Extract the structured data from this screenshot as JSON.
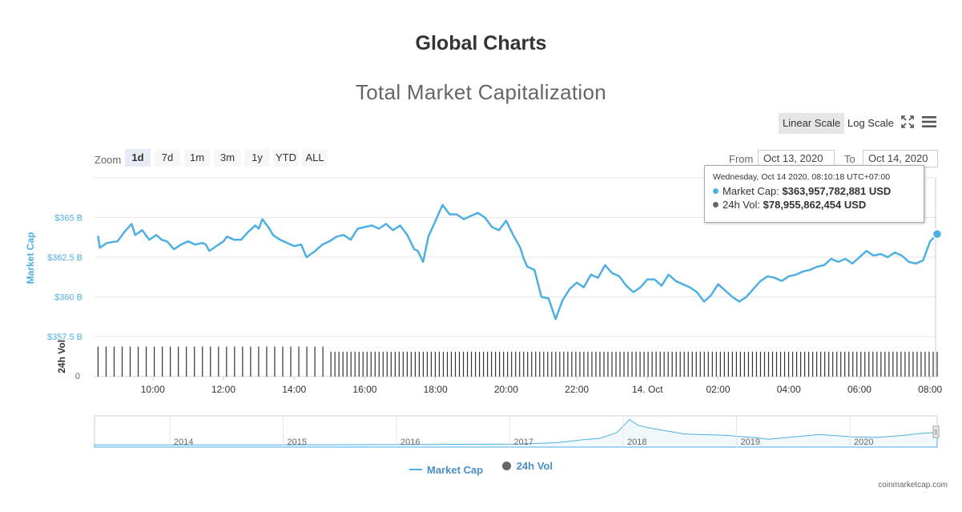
{
  "header": {
    "page_title": "Global Charts",
    "chart_title": "Total Market Capitalization"
  },
  "toolbar": {
    "linear_label": "Linear Scale",
    "log_label": "Log Scale",
    "fullscreen_icon": "fullscreen-icon",
    "menu_icon": "hamburger-menu-icon"
  },
  "zoom": {
    "label": "Zoom",
    "buttons": [
      "1d",
      "7d",
      "1m",
      "3m",
      "1y",
      "YTD",
      "ALL"
    ],
    "active": "1d"
  },
  "range": {
    "from_label": "From",
    "from_value": "Oct 13, 2020",
    "to_label": "To",
    "to_value": "Oct 14, 2020"
  },
  "tooltip": {
    "timestamp": "Wednesday, Oct 14 2020, 08:10:18 UTC+07:00",
    "market_cap_label": "Market Cap:",
    "market_cap_value": "$363,957,782,881 USD",
    "vol_label": "24h Vol:",
    "vol_value": "$78,955,862,454 USD"
  },
  "legend": {
    "market_cap": "Market Cap",
    "volume": "24h Vol"
  },
  "credits": "coinmarketcap.com",
  "colors": {
    "market_cap": "#4eafe3",
    "volume": "#333333",
    "volume_legend": "#666666"
  },
  "chart_data": {
    "type": "line",
    "ylabel": "Market Cap",
    "ylabel2": "24h Vol",
    "ylim": [
      357.5,
      367.5
    ],
    "y_ticks": [
      "$365 B",
      "$362.5 B",
      "$360 B",
      "$357.5 B"
    ],
    "y_tick_values": [
      365,
      362.5,
      360,
      357.5
    ],
    "vol_tick": "0",
    "x_ticks": [
      "10:00",
      "12:00",
      "14:00",
      "16:00",
      "18:00",
      "20:00",
      "22:00",
      "14. Oct",
      "02:00",
      "04:00",
      "06:00",
      "08:00"
    ],
    "x_tick_hours": [
      10,
      12,
      14,
      16,
      18,
      20,
      22,
      24,
      26,
      28,
      30,
      32
    ],
    "x_range_hours": [
      8.35,
      32.2
    ],
    "series": [
      {
        "name": "Market Cap",
        "unit": "B USD",
        "points": [
          [
            8.45,
            363.85
          ],
          [
            8.5,
            363.1
          ],
          [
            8.7,
            363.4
          ],
          [
            9.0,
            363.5
          ],
          [
            9.2,
            364.1
          ],
          [
            9.4,
            364.6
          ],
          [
            9.5,
            363.9
          ],
          [
            9.7,
            364.2
          ],
          [
            9.9,
            363.6
          ],
          [
            10.1,
            363.9
          ],
          [
            10.25,
            363.6
          ],
          [
            10.4,
            363.5
          ],
          [
            10.6,
            363.0
          ],
          [
            10.8,
            363.3
          ],
          [
            11.0,
            363.5
          ],
          [
            11.2,
            363.3
          ],
          [
            11.4,
            363.4
          ],
          [
            11.5,
            363.3
          ],
          [
            11.6,
            362.9
          ],
          [
            11.8,
            363.2
          ],
          [
            12.0,
            363.5
          ],
          [
            12.1,
            363.8
          ],
          [
            12.3,
            363.6
          ],
          [
            12.5,
            363.6
          ],
          [
            12.7,
            364.1
          ],
          [
            12.9,
            364.5
          ],
          [
            13.0,
            364.3
          ],
          [
            13.1,
            364.9
          ],
          [
            13.3,
            364.3
          ],
          [
            13.4,
            363.9
          ],
          [
            13.6,
            363.6
          ],
          [
            13.8,
            363.4
          ],
          [
            14.0,
            363.2
          ],
          [
            14.2,
            363.3
          ],
          [
            14.35,
            362.5
          ],
          [
            14.6,
            362.9
          ],
          [
            14.8,
            363.3
          ],
          [
            15.0,
            363.5
          ],
          [
            15.2,
            363.8
          ],
          [
            15.4,
            363.9
          ],
          [
            15.6,
            363.6
          ],
          [
            15.8,
            364.3
          ],
          [
            16.0,
            364.4
          ],
          [
            16.2,
            364.5
          ],
          [
            16.4,
            364.3
          ],
          [
            16.6,
            364.6
          ],
          [
            16.8,
            364.2
          ],
          [
            17.0,
            364.5
          ],
          [
            17.2,
            363.9
          ],
          [
            17.4,
            363.0
          ],
          [
            17.5,
            362.9
          ],
          [
            17.65,
            362.2
          ],
          [
            17.8,
            363.8
          ],
          [
            18.0,
            364.8
          ],
          [
            18.2,
            365.8
          ],
          [
            18.4,
            365.2
          ],
          [
            18.6,
            365.2
          ],
          [
            18.8,
            364.9
          ],
          [
            19.0,
            365.1
          ],
          [
            19.2,
            365.3
          ],
          [
            19.4,
            365.0
          ],
          [
            19.6,
            364.4
          ],
          [
            19.8,
            364.2
          ],
          [
            20.0,
            364.8
          ],
          [
            20.2,
            363.9
          ],
          [
            20.4,
            363.1
          ],
          [
            20.5,
            362.4
          ],
          [
            20.6,
            361.9
          ],
          [
            20.8,
            361.7
          ],
          [
            21.0,
            360.0
          ],
          [
            21.2,
            359.9
          ],
          [
            21.4,
            358.6
          ],
          [
            21.6,
            359.8
          ],
          [
            21.8,
            360.5
          ],
          [
            22.0,
            360.9
          ],
          [
            22.2,
            360.6
          ],
          [
            22.4,
            361.4
          ],
          [
            22.6,
            361.2
          ],
          [
            22.8,
            362.0
          ],
          [
            23.0,
            361.5
          ],
          [
            23.2,
            361.3
          ],
          [
            23.4,
            360.7
          ],
          [
            23.6,
            360.3
          ],
          [
            23.8,
            360.6
          ],
          [
            24.0,
            361.1
          ],
          [
            24.2,
            361.1
          ],
          [
            24.4,
            360.7
          ],
          [
            24.6,
            361.4
          ],
          [
            24.8,
            361.0
          ],
          [
            25.0,
            360.8
          ],
          [
            25.2,
            360.6
          ],
          [
            25.4,
            360.3
          ],
          [
            25.6,
            359.7
          ],
          [
            25.8,
            360.1
          ],
          [
            26.0,
            360.8
          ],
          [
            26.2,
            360.4
          ],
          [
            26.4,
            360.0
          ],
          [
            26.6,
            359.7
          ],
          [
            26.8,
            360.0
          ],
          [
            27.0,
            360.5
          ],
          [
            27.2,
            361.0
          ],
          [
            27.4,
            361.3
          ],
          [
            27.6,
            361.2
          ],
          [
            27.8,
            361.0
          ],
          [
            28.0,
            361.3
          ],
          [
            28.2,
            361.4
          ],
          [
            28.4,
            361.6
          ],
          [
            28.6,
            361.7
          ],
          [
            28.8,
            361.9
          ],
          [
            29.0,
            362.0
          ],
          [
            29.2,
            362.4
          ],
          [
            29.4,
            362.2
          ],
          [
            29.6,
            362.4
          ],
          [
            29.8,
            362.1
          ],
          [
            30.0,
            362.5
          ],
          [
            30.2,
            362.9
          ],
          [
            30.4,
            362.6
          ],
          [
            30.6,
            362.7
          ],
          [
            30.8,
            362.5
          ],
          [
            31.0,
            362.8
          ],
          [
            31.2,
            362.6
          ],
          [
            31.4,
            362.2
          ],
          [
            31.6,
            362.1
          ],
          [
            31.8,
            362.3
          ],
          [
            32.0,
            363.5
          ],
          [
            32.2,
            363.96
          ]
        ]
      },
      {
        "name": "24h Vol",
        "bar_count": 210,
        "note_scale": "relative height 0-1",
        "segments": [
          [
            8.4,
            15.0,
            0.75
          ],
          [
            15.0,
            32.2,
            0.62
          ]
        ]
      }
    ],
    "navigator": {
      "x_ticks": [
        "2014",
        "2015",
        "2016",
        "2017",
        "2018",
        "2019",
        "2020"
      ]
    }
  }
}
